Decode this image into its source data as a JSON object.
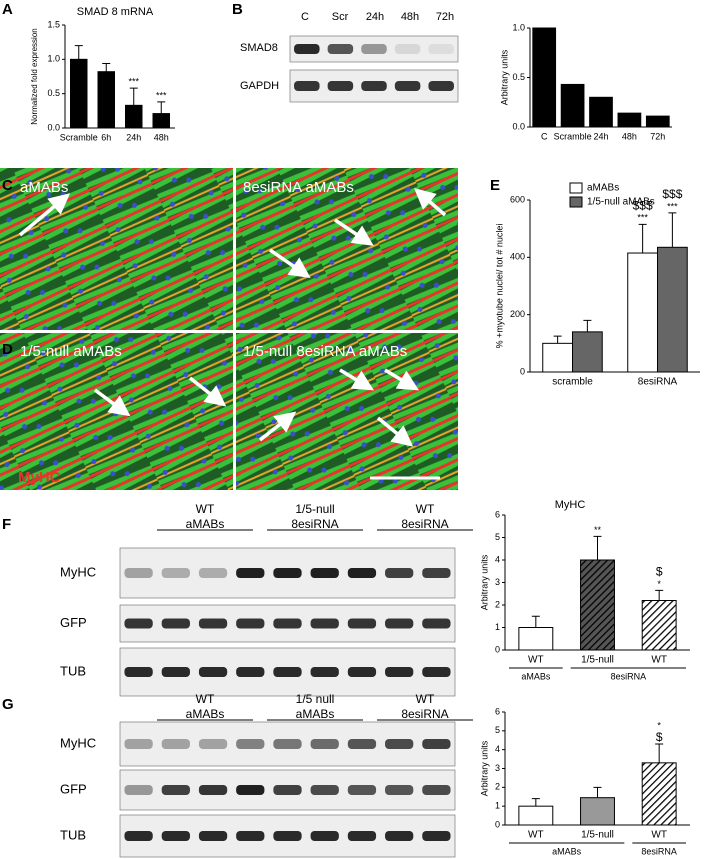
{
  "panel_labels": [
    "A",
    "B",
    "C",
    "D",
    "E",
    "F",
    "G"
  ],
  "blots": [
    {
      "columns": [
        "C",
        "Scr",
        "24h",
        "48h",
        "72h"
      ],
      "rows": [
        "SMAD8",
        "GAPDH"
      ]
    },
    {
      "groups": [
        [
          "WT",
          "aMABs"
        ],
        [
          "1/5-null",
          "8esiRNA"
        ],
        [
          "WT",
          "8esiRNA"
        ]
      ],
      "rows": [
        "MyHC",
        "GFP",
        "TUB"
      ]
    },
    {
      "groups": [
        [
          "WT",
          "aMABs"
        ],
        [
          "1/5 null",
          "aMABs"
        ],
        [
          "WT",
          "8esiRNA"
        ]
      ],
      "rows": [
        "MyHC",
        "GFP",
        "TUB"
      ]
    }
  ],
  "images": {
    "labels": [
      "aMABs",
      "8esiRNA aMABs",
      "1/5-null aMABs",
      "1/5-null 8esiRNA aMABs"
    ],
    "stain": "MyHC"
  },
  "chart_data": [
    {
      "type": "bar",
      "title": "SMAD 8 mRNA",
      "ylabel": "Normalized fold expression",
      "categories": [
        "Scramble",
        "6h",
        "24h",
        "48h"
      ],
      "series": [
        {
          "color": "#000000",
          "values": [
            1.0,
            0.82,
            0.33,
            0.21
          ],
          "errors": [
            0.2,
            0.12,
            0.25,
            0.17
          ],
          "annotations": [
            null,
            null,
            [
              "***"
            ],
            [
              "***"
            ]
          ]
        }
      ],
      "ylim": [
        0,
        1.5
      ],
      "yticks": [
        {
          "value": 0,
          "label": "0.0"
        },
        {
          "value": 0.5,
          "label": "0.5"
        },
        {
          "value": 1,
          "label": "1.0"
        },
        {
          "value": 1.5,
          "label": "1.5"
        }
      ]
    },
    {
      "type": "bar",
      "ylabel": "Arbitrary units",
      "categories": [
        "C",
        "Scramble",
        "24h",
        "48h",
        "72h"
      ],
      "series": [
        {
          "color": "#000000",
          "values": [
            1.0,
            0.43,
            0.3,
            0.14,
            0.11
          ]
        }
      ],
      "ylim": [
        0,
        1
      ],
      "yticks": [
        {
          "value": 0,
          "label": "0.0"
        },
        {
          "value": 0.5,
          "label": "0.5"
        },
        {
          "value": 1,
          "label": "1.0"
        }
      ]
    },
    {
      "type": "bar",
      "ylabel": "% +myotube nuclei/ tot # nuclei",
      "categories": [
        "scramble",
        "8esiRNA"
      ],
      "series": [
        {
          "name": "aMABs",
          "color": "#ffffff",
          "values": [
            100,
            415
          ],
          "errors": [
            25,
            100
          ],
          "annotations": [
            null,
            [
              "$$$",
              "***"
            ]
          ]
        },
        {
          "name": "1/5-null aMABs",
          "color": "#666666",
          "values": [
            140,
            435
          ],
          "errors": [
            40,
            120
          ],
          "annotations": [
            null,
            [
              "$$$",
              "***"
            ]
          ]
        }
      ],
      "legend": "upper left",
      "ylim": [
        0,
        600
      ],
      "yticks": [
        0,
        200,
        400,
        600
      ]
    },
    {
      "type": "bar",
      "title": "MyHC",
      "ylabel": "Arbitrary units",
      "categories": [
        "WT",
        "1/5-null",
        "WT"
      ],
      "groups": [
        "aMABs",
        "8esiRNA"
      ],
      "series": [
        {
          "colors": [
            "#ffffff",
            "#555555",
            "#ffffff"
          ],
          "hatch": [
            false,
            true,
            true
          ],
          "values": [
            1.0,
            4.0,
            2.2
          ],
          "errors": [
            0.5,
            1.05,
            0.45
          ],
          "annotations": [
            null,
            [
              "**"
            ],
            [
              "$",
              "*"
            ]
          ]
        }
      ],
      "ylim": [
        0,
        6
      ],
      "yticks": [
        0,
        1,
        2,
        3,
        4,
        5,
        6
      ]
    },
    {
      "type": "bar",
      "ylabel": "Arbitrary units",
      "categories": [
        "WT",
        "1/5-null",
        "WT"
      ],
      "groups": [
        "aMABs",
        "8esiRNA"
      ],
      "series": [
        {
          "colors": [
            "#ffffff",
            "#999999",
            "#ffffff"
          ],
          "hatch": [
            false,
            false,
            true
          ],
          "values": [
            1.0,
            1.45,
            3.3
          ],
          "errors": [
            0.4,
            0.55,
            1.0
          ],
          "annotations": [
            null,
            null,
            [
              "*",
              "$"
            ]
          ]
        }
      ],
      "ylim": [
        0,
        6
      ],
      "yticks": [
        0,
        1,
        2,
        3,
        4,
        5,
        6
      ]
    }
  ]
}
